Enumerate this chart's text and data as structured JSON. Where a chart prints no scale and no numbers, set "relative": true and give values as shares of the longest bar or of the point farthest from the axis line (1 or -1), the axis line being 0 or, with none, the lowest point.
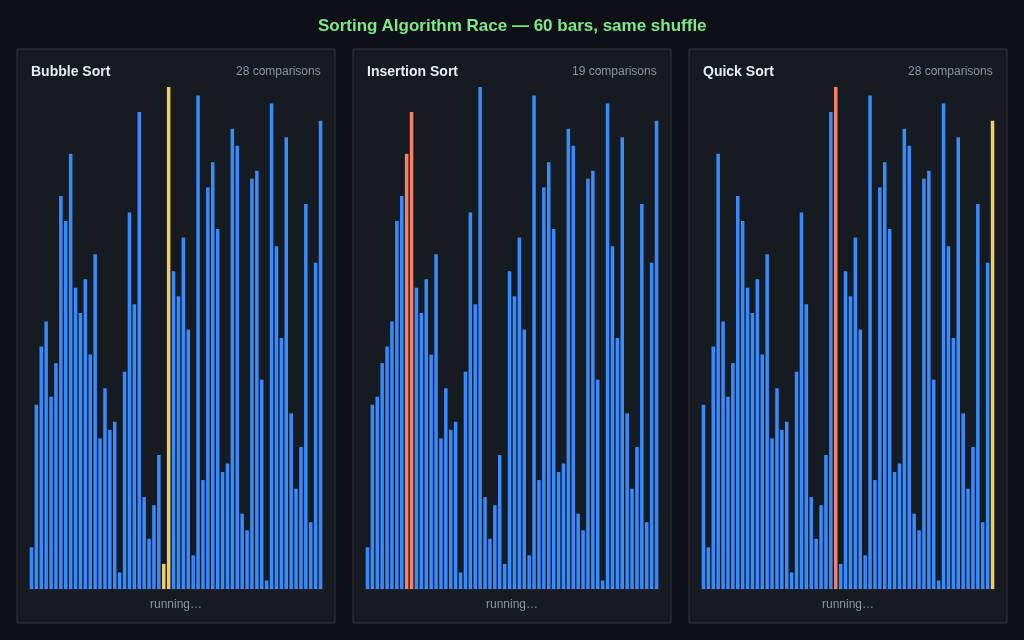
{
  "chart_data": [
    {
      "type": "other",
      "title": "Sorting Algorithm Race — 60 bars, same shuffle"
    },
    {
      "type": "bar",
      "title": "Bubble Sort",
      "subtitle": "28 comparisons",
      "annotations": [
        "running…"
      ],
      "relative": true,
      "categories": [
        null,
        null,
        null,
        null,
        null,
        null,
        null,
        null,
        null,
        null,
        null,
        null,
        null,
        null,
        null,
        null,
        null,
        null,
        null,
        null,
        null,
        null,
        null,
        null,
        null,
        null,
        null,
        null,
        null,
        null,
        null,
        null,
        null,
        null,
        null,
        null,
        null,
        null,
        null,
        null,
        null,
        null,
        null,
        null,
        null,
        null,
        null,
        null,
        null,
        null,
        null,
        null,
        null,
        null,
        null,
        null,
        null,
        null,
        null,
        null
      ],
      "values": [
        0.083,
        0.367,
        0.483,
        0.533,
        0.383,
        0.45,
        0.783,
        0.733,
        0.867,
        0.6,
        0.55,
        0.617,
        0.467,
        0.667,
        0.3,
        0.4,
        0.317,
        0.333,
        0.033,
        0.433,
        0.75,
        0.567,
        0.95,
        0.183,
        0.1,
        0.167,
        0.267,
        0.05,
        1,
        0.633,
        0.583,
        0.7,
        0.517,
        0.067,
        0.983,
        0.217,
        0.8,
        0.85,
        0.717,
        0.233,
        0.25,
        0.917,
        0.883,
        0.15,
        0.117,
        0.817,
        0.833,
        0.417,
        0.017,
        0.967,
        0.683,
        0.5,
        0.9,
        0.35,
        0.2,
        0.283,
        0.767,
        0.133,
        0.65,
        0.933
      ],
      "colors": [
        "#388bfd",
        "#388bfd",
        "#388bfd",
        "#388bfd",
        "#388bfd",
        "#388bfd",
        "#388bfd",
        "#388bfd",
        "#388bfd",
        "#388bfd",
        "#388bfd",
        "#388bfd",
        "#388bfd",
        "#388bfd",
        "#388bfd",
        "#388bfd",
        "#388bfd",
        "#388bfd",
        "#388bfd",
        "#388bfd",
        "#388bfd",
        "#388bfd",
        "#388bfd",
        "#388bfd",
        "#388bfd",
        "#388bfd",
        "#388bfd",
        "#f2cc60",
        "#f2cc60",
        "#388bfd",
        "#388bfd",
        "#388bfd",
        "#388bfd",
        "#388bfd",
        "#388bfd",
        "#388bfd",
        "#388bfd",
        "#388bfd",
        "#388bfd",
        "#388bfd",
        "#388bfd",
        "#388bfd",
        "#388bfd",
        "#388bfd",
        "#388bfd",
        "#388bfd",
        "#388bfd",
        "#388bfd",
        "#388bfd",
        "#388bfd",
        "#388bfd",
        "#388bfd",
        "#388bfd",
        "#388bfd",
        "#388bfd",
        "#388bfd",
        "#388bfd",
        "#388bfd",
        "#388bfd",
        "#388bfd"
      ]
    },
    {
      "type": "bar",
      "title": "Insertion Sort",
      "subtitle": "19 comparisons",
      "annotations": [
        "running…"
      ],
      "relative": true,
      "categories": [
        null,
        null,
        null,
        null,
        null,
        null,
        null,
        null,
        null,
        null,
        null,
        null,
        null,
        null,
        null,
        null,
        null,
        null,
        null,
        null,
        null,
        null,
        null,
        null,
        null,
        null,
        null,
        null,
        null,
        null,
        null,
        null,
        null,
        null,
        null,
        null,
        null,
        null,
        null,
        null,
        null,
        null,
        null,
        null,
        null,
        null,
        null,
        null,
        null,
        null,
        null,
        null,
        null,
        null,
        null,
        null,
        null,
        null,
        null,
        null
      ],
      "values": [
        0.083,
        0.367,
        0.383,
        0.45,
        0.483,
        0.533,
        0.733,
        0.783,
        0.867,
        0.95,
        0.6,
        0.55,
        0.617,
        0.467,
        0.667,
        0.3,
        0.4,
        0.317,
        0.333,
        0.033,
        0.433,
        0.75,
        0.567,
        1,
        0.183,
        0.1,
        0.167,
        0.267,
        0.05,
        0.633,
        0.583,
        0.7,
        0.517,
        0.067,
        0.983,
        0.217,
        0.8,
        0.85,
        0.717,
        0.233,
        0.25,
        0.917,
        0.883,
        0.15,
        0.117,
        0.817,
        0.833,
        0.417,
        0.017,
        0.967,
        0.683,
        0.5,
        0.9,
        0.35,
        0.2,
        0.283,
        0.767,
        0.133,
        0.65,
        0.933
      ],
      "colors": [
        "#388bfd",
        "#388bfd",
        "#388bfd",
        "#388bfd",
        "#388bfd",
        "#388bfd",
        "#388bfd",
        "#388bfd",
        "#f78166",
        "#f78166",
        "#388bfd",
        "#388bfd",
        "#388bfd",
        "#388bfd",
        "#388bfd",
        "#388bfd",
        "#388bfd",
        "#388bfd",
        "#388bfd",
        "#388bfd",
        "#388bfd",
        "#388bfd",
        "#388bfd",
        "#388bfd",
        "#388bfd",
        "#388bfd",
        "#388bfd",
        "#388bfd",
        "#388bfd",
        "#388bfd",
        "#388bfd",
        "#388bfd",
        "#388bfd",
        "#388bfd",
        "#388bfd",
        "#388bfd",
        "#388bfd",
        "#388bfd",
        "#388bfd",
        "#388bfd",
        "#388bfd",
        "#388bfd",
        "#388bfd",
        "#388bfd",
        "#388bfd",
        "#388bfd",
        "#388bfd",
        "#388bfd",
        "#388bfd",
        "#388bfd",
        "#388bfd",
        "#388bfd",
        "#388bfd",
        "#388bfd",
        "#388bfd",
        "#388bfd",
        "#388bfd",
        "#388bfd",
        "#388bfd",
        "#388bfd"
      ]
    },
    {
      "type": "bar",
      "title": "Quick Sort",
      "subtitle": "28 comparisons",
      "annotations": [
        "running…"
      ],
      "relative": true,
      "categories": [
        null,
        null,
        null,
        null,
        null,
        null,
        null,
        null,
        null,
        null,
        null,
        null,
        null,
        null,
        null,
        null,
        null,
        null,
        null,
        null,
        null,
        null,
        null,
        null,
        null,
        null,
        null,
        null,
        null,
        null,
        null,
        null,
        null,
        null,
        null,
        null,
        null,
        null,
        null,
        null,
        null,
        null,
        null,
        null,
        null,
        null,
        null,
        null,
        null,
        null,
        null,
        null,
        null,
        null,
        null,
        null,
        null,
        null,
        null,
        null
      ],
      "values": [
        0.367,
        0.083,
        0.483,
        0.867,
        0.533,
        0.383,
        0.45,
        0.783,
        0.733,
        0.6,
        0.55,
        0.617,
        0.467,
        0.667,
        0.3,
        0.4,
        0.317,
        0.333,
        0.033,
        0.433,
        0.75,
        0.567,
        0.183,
        0.1,
        0.167,
        0.267,
        0.95,
        1,
        0.05,
        0.633,
        0.583,
        0.7,
        0.517,
        0.067,
        0.983,
        0.217,
        0.8,
        0.85,
        0.717,
        0.233,
        0.25,
        0.917,
        0.883,
        0.15,
        0.117,
        0.817,
        0.833,
        0.417,
        0.017,
        0.967,
        0.683,
        0.5,
        0.9,
        0.35,
        0.2,
        0.283,
        0.767,
        0.133,
        0.65,
        0.933
      ],
      "colors": [
        "#388bfd",
        "#388bfd",
        "#388bfd",
        "#388bfd",
        "#388bfd",
        "#388bfd",
        "#388bfd",
        "#388bfd",
        "#388bfd",
        "#388bfd",
        "#388bfd",
        "#388bfd",
        "#388bfd",
        "#388bfd",
        "#388bfd",
        "#388bfd",
        "#388bfd",
        "#388bfd",
        "#388bfd",
        "#388bfd",
        "#388bfd",
        "#388bfd",
        "#388bfd",
        "#388bfd",
        "#388bfd",
        "#388bfd",
        "#388bfd",
        "#f78166",
        "#388bfd",
        "#388bfd",
        "#388bfd",
        "#388bfd",
        "#388bfd",
        "#388bfd",
        "#388bfd",
        "#388bfd",
        "#388bfd",
        "#388bfd",
        "#388bfd",
        "#388bfd",
        "#388bfd",
        "#388bfd",
        "#388bfd",
        "#388bfd",
        "#388bfd",
        "#388bfd",
        "#388bfd",
        "#388bfd",
        "#388bfd",
        "#388bfd",
        "#388bfd",
        "#388bfd",
        "#388bfd",
        "#388bfd",
        "#388bfd",
        "#388bfd",
        "#388bfd",
        "#388bfd",
        "#388bfd",
        "#f2cc60"
      ]
    }
  ]
}
